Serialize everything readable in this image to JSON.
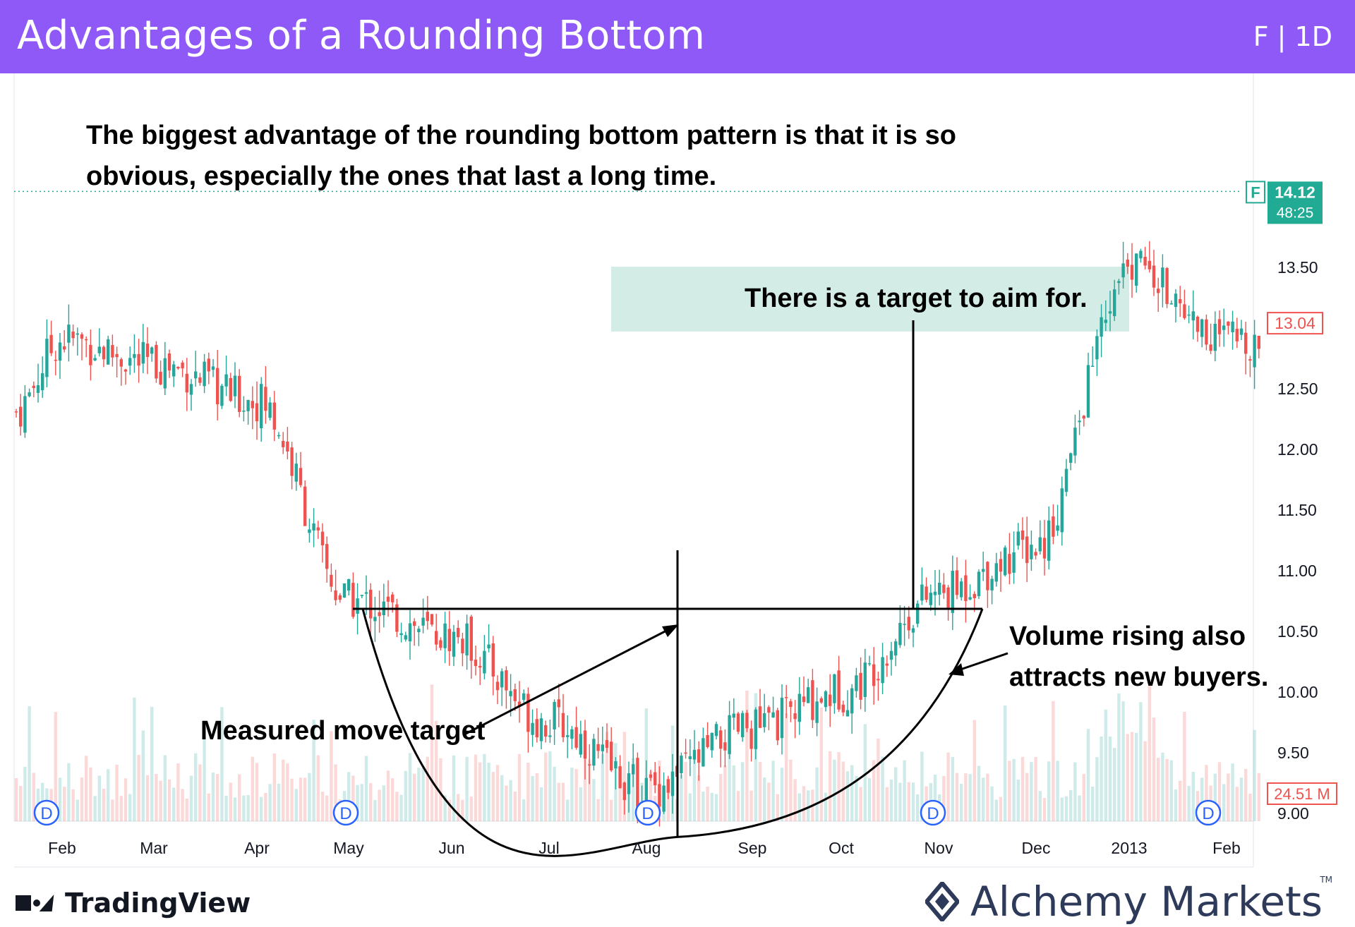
{
  "header": {
    "title": "Advantages of a Rounding Bottom",
    "symbol_interval": "F | 1D"
  },
  "chart_data": {
    "type": "candlestick",
    "symbol": "F",
    "interval": "1D",
    "ylim": [
      8.6,
      14.5
    ],
    "yticks": [
      "13.50",
      "12.50",
      "12.00",
      "11.50",
      "11.00",
      "10.50",
      "10.00",
      "9.50",
      "9.00"
    ],
    "ytick_values": [
      13.5,
      12.5,
      12.0,
      11.5,
      11.0,
      10.5,
      10.0,
      9.5,
      9.0
    ],
    "xticks": [
      "Feb",
      "Mar",
      "Apr",
      "May",
      "Jun",
      "Jul",
      "Aug",
      "Sep",
      "Oct",
      "Nov",
      "Dec",
      "2013",
      "Feb"
    ],
    "price_labels": {
      "current_symbol": "F",
      "current_price": "14.12",
      "countdown": "48:25",
      "last_close": "13.04",
      "volume": "24.51 M"
    },
    "dividend_marker_label": "D",
    "dividend_markers_at": [
      "May",
      "Aug",
      "Nov",
      "Feb"
    ],
    "close_path": [
      [
        "Jan",
        12.3
      ],
      [
        "Feb",
        12.9
      ],
      [
        "Mar",
        12.7
      ],
      [
        "Apr",
        12.4
      ],
      [
        "May",
        10.75
      ],
      [
        "Jun",
        10.45
      ],
      [
        "Jul",
        9.75
      ],
      [
        "Aug",
        9.2
      ],
      [
        "Sep",
        9.7
      ],
      [
        "Oct",
        10.0
      ],
      [
        "Nov",
        10.8
      ],
      [
        "Dec",
        11.2
      ],
      [
        "2013",
        13.5
      ],
      [
        "Feb",
        12.9
      ]
    ],
    "pattern": {
      "neckline": 10.68,
      "bottom": 8.8
    },
    "annotations": [
      "The biggest advantage of the rounding bottom pattern is that it is so obvious, especially the ones that last a long time.",
      "There is a target to aim for.",
      "Measured move target",
      "Volume rising also attracts new buyers."
    ],
    "colors": {
      "up": "#26a69a",
      "down": "#ef5350",
      "highlight": "#d4ece6",
      "last_close": "#ef5350",
      "current": "#22ab94"
    }
  },
  "footer": {
    "tradingview": "TradingView",
    "alchemy": "Alchemy Markets",
    "trademark": "TM"
  }
}
